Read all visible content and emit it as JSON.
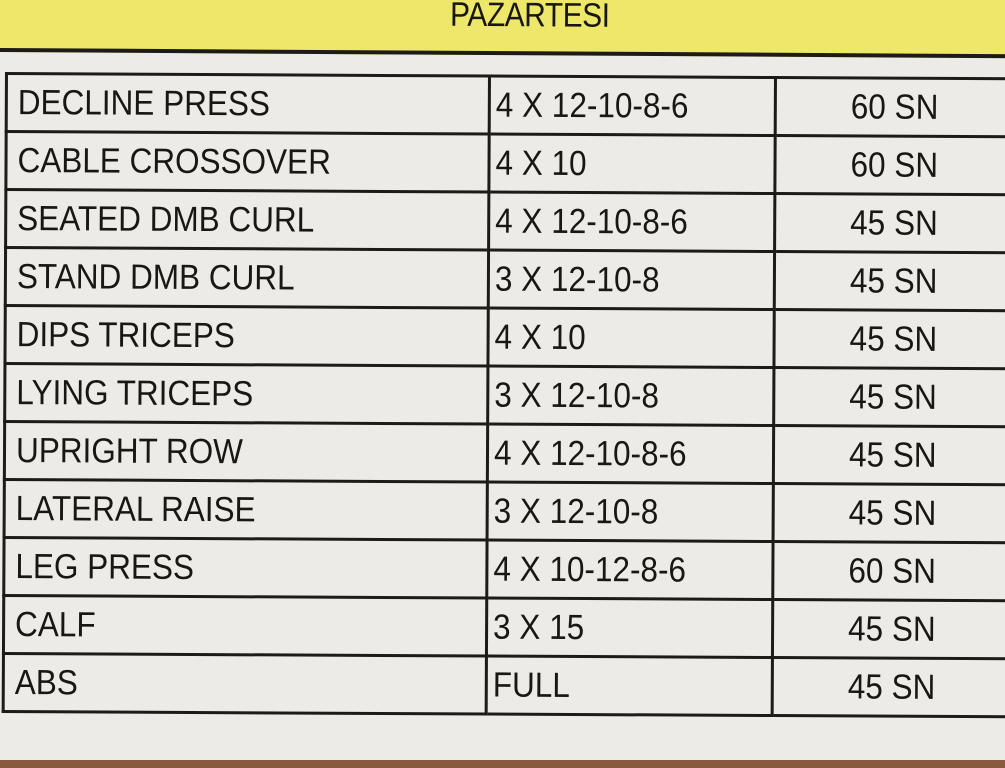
{
  "title": "PAZARTESI",
  "rows": [
    {
      "exercise": "DECLINE PRESS",
      "sets": "4 X 12-10-8-6",
      "rest": "60 SN"
    },
    {
      "exercise": "CABLE CROSSOVER",
      "sets": "4 X 10",
      "rest": "60 SN"
    },
    {
      "exercise": "SEATED DMB CURL",
      "sets": "4 X 12-10-8-6",
      "rest": "45 SN"
    },
    {
      "exercise": "STAND DMB CURL",
      "sets": "3 X 12-10-8",
      "rest": "45 SN"
    },
    {
      "exercise": "DIPS TRICEPS",
      "sets": "4 X 10",
      "rest": "45 SN"
    },
    {
      "exercise": "LYING TRICEPS",
      "sets": "3 X 12-10-8",
      "rest": "45 SN"
    },
    {
      "exercise": "UPRIGHT ROW",
      "sets": "4 X 12-10-8-6",
      "rest": "45 SN"
    },
    {
      "exercise": "LATERAL RAISE",
      "sets": "3 X 12-10-8",
      "rest": "45 SN"
    },
    {
      "exercise": "LEG PRESS",
      "sets": "4 X 10-12-8-6",
      "rest": "60 SN"
    },
    {
      "exercise": "CALF",
      "sets": "3 X 15",
      "rest": "45 SN"
    },
    {
      "exercise": "ABS",
      "sets": "FULL",
      "rest": "45 SN"
    }
  ],
  "colors": {
    "banner": "#ede86a",
    "paper": "#ecebe8",
    "ink": "#1e1a16"
  }
}
